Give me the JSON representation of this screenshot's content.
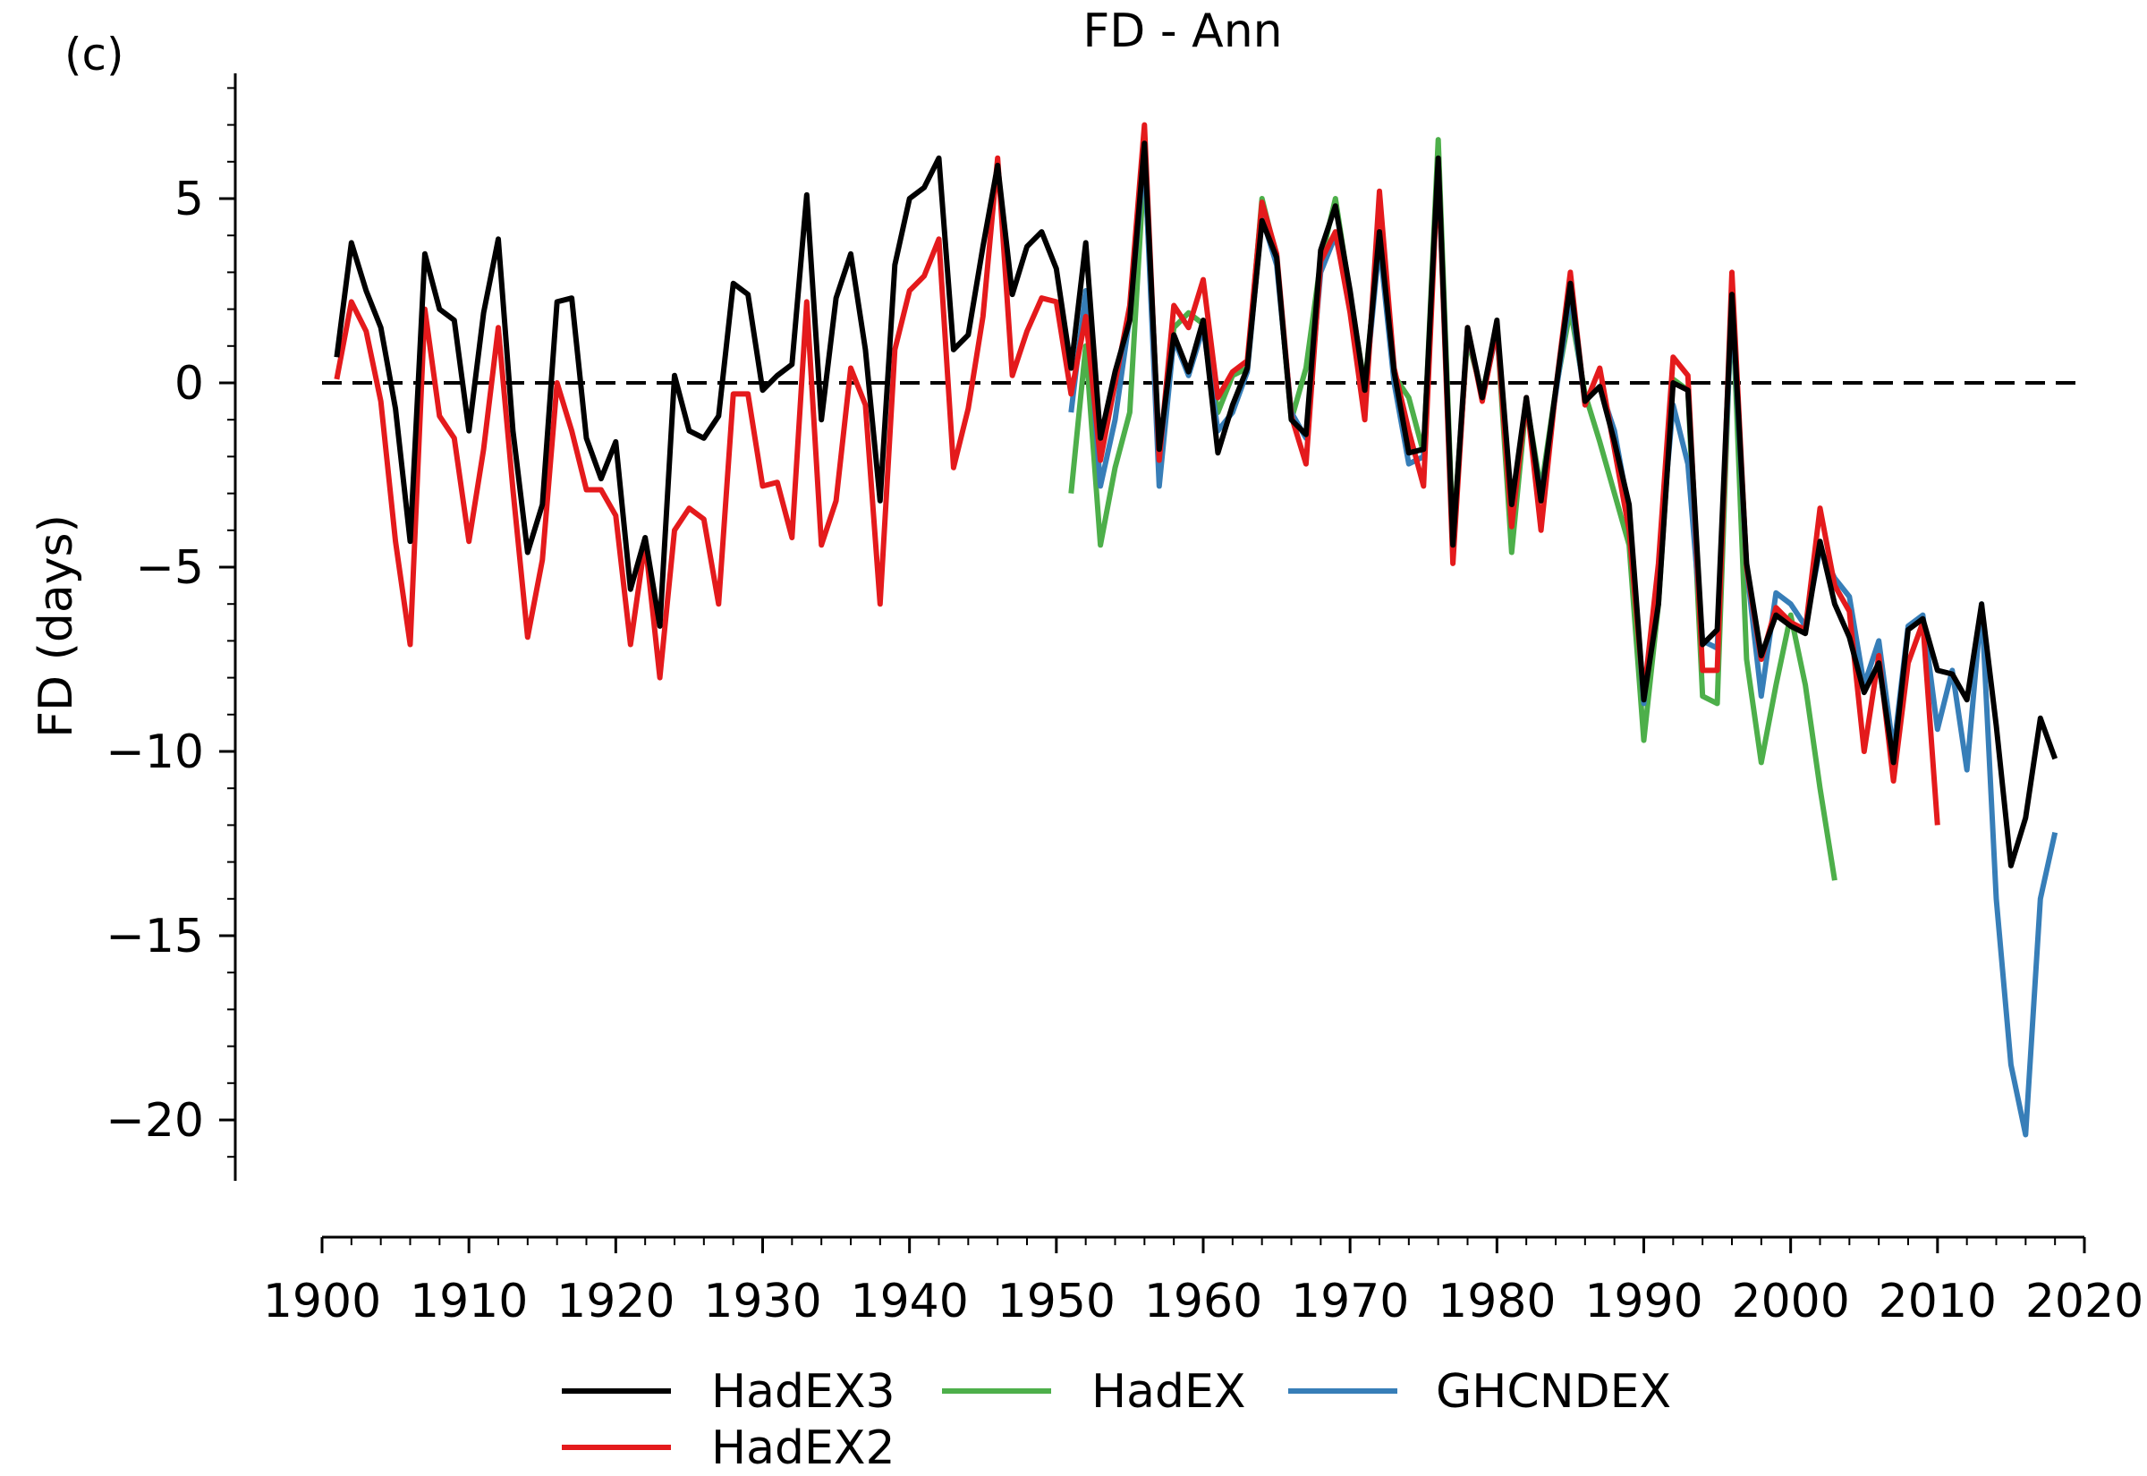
{
  "panel_label": "(c)",
  "chart_data": {
    "type": "line",
    "title": "FD - Ann",
    "xlabel": "",
    "ylabel": "FD (days)",
    "xlim": [
      1900,
      2020
    ],
    "ylim": [
      -22,
      8.5
    ],
    "x_ticks": [
      1900,
      1910,
      1920,
      1930,
      1940,
      1950,
      1960,
      1970,
      1980,
      1990,
      2000,
      2010,
      2020
    ],
    "y_ticks": [
      5,
      0,
      -5,
      -10,
      -15,
      -20
    ],
    "y_tick_labels": [
      "5",
      "0",
      "−5",
      "−10",
      "−15",
      "−20"
    ],
    "reference_line": 0,
    "legend": {
      "placement": "bottom-center",
      "entries": [
        "HadEX3",
        "HadEX2",
        "HadEX",
        "GHCNDEX"
      ]
    },
    "series": [
      {
        "name": "HadEX",
        "color": "#4daf4a",
        "x": [
          1951,
          1952,
          1953,
          1954,
          1955,
          1956,
          1957,
          1958,
          1959,
          1960,
          1961,
          1962,
          1963,
          1964,
          1965,
          1966,
          1967,
          1968,
          1969,
          1970,
          1971,
          1972,
          1973,
          1974,
          1975,
          1976,
          1977,
          1978,
          1979,
          1980,
          1981,
          1982,
          1983,
          1984,
          1985,
          1986,
          1987,
          1988,
          1989,
          1990,
          1991,
          1992,
          1993,
          1994,
          1995,
          1996,
          1997,
          1998,
          1999,
          2000,
          2001,
          2002,
          2003
        ],
        "y": [
          -3.0,
          1.0,
          -4.4,
          -2.3,
          -0.8,
          6.0,
          -1.9,
          1.5,
          1.9,
          1.6,
          -0.8,
          0.2,
          0.4,
          5.0,
          3.4,
          -1.0,
          0.4,
          3.3,
          5.0,
          2.4,
          -0.1,
          4.0,
          0.2,
          -0.4,
          -1.9,
          6.6,
          -4.2,
          1.2,
          -0.3,
          1.5,
          -4.6,
          -0.5,
          -2.9,
          -0.2,
          2.0,
          -0.3,
          -1.6,
          -3.0,
          -4.4,
          -9.7,
          -6.0,
          0.1,
          -0.2,
          -8.5,
          -8.7,
          2.5,
          -7.5,
          -10.3,
          -8.2,
          -6.3,
          -8.2,
          -11.0,
          -13.5
        ]
      },
      {
        "name": "GHCNDEX",
        "color": "#377eb8",
        "x": [
          1951,
          1952,
          1953,
          1954,
          1955,
          1956,
          1957,
          1958,
          1959,
          1960,
          1961,
          1962,
          1963,
          1964,
          1965,
          1966,
          1967,
          1968,
          1969,
          1970,
          1971,
          1972,
          1973,
          1974,
          1975,
          1976,
          1977,
          1978,
          1979,
          1980,
          1981,
          1982,
          1983,
          1984,
          1985,
          1986,
          1987,
          1988,
          1989,
          1990,
          1991,
          1992,
          1993,
          1994,
          1995,
          1996,
          1997,
          1998,
          1999,
          2000,
          2001,
          2002,
          2003,
          2004,
          2005,
          2006,
          2007,
          2008,
          2009,
          2010,
          2011,
          2012,
          2013,
          2014,
          2015,
          2016,
          2017,
          2018
        ],
        "y": [
          -0.8,
          2.5,
          -2.8,
          -1.0,
          1.8,
          6.2,
          -2.8,
          1.2,
          0.2,
          1.5,
          -1.3,
          -0.8,
          0.3,
          4.5,
          3.2,
          -0.8,
          -1.5,
          3.0,
          4.0,
          2.2,
          -0.3,
          3.8,
          0.0,
          -2.2,
          -2.0,
          6.0,
          -4.6,
          1.4,
          -0.4,
          1.4,
          -3.6,
          -0.5,
          -3.1,
          -0.3,
          2.4,
          -0.5,
          -0.1,
          -1.3,
          -3.5,
          -8.7,
          -5.0,
          -0.6,
          -2.2,
          -7.0,
          -7.2,
          2.2,
          -5.0,
          -8.5,
          -5.7,
          -6.0,
          -6.6,
          -4.5,
          -5.3,
          -5.8,
          -8.2,
          -7.0,
          -10.0,
          -6.6,
          -6.3,
          -9.4,
          -7.8,
          -10.5,
          -6.0,
          -14.0,
          -18.5,
          -20.4,
          -14.0,
          -12.2
        ]
      },
      {
        "name": "HadEX2",
        "color": "#e41a1c",
        "x": [
          1901,
          1902,
          1903,
          1904,
          1905,
          1906,
          1907,
          1908,
          1909,
          1910,
          1911,
          1912,
          1913,
          1914,
          1915,
          1916,
          1917,
          1918,
          1919,
          1920,
          1921,
          1922,
          1923,
          1924,
          1925,
          1926,
          1927,
          1928,
          1929,
          1930,
          1931,
          1932,
          1933,
          1934,
          1935,
          1936,
          1937,
          1938,
          1939,
          1940,
          1941,
          1942,
          1943,
          1944,
          1945,
          1946,
          1947,
          1948,
          1949,
          1950,
          1951,
          1952,
          1953,
          1954,
          1955,
          1956,
          1957,
          1958,
          1959,
          1960,
          1961,
          1962,
          1963,
          1964,
          1965,
          1966,
          1967,
          1968,
          1969,
          1970,
          1971,
          1972,
          1973,
          1974,
          1975,
          1976,
          1977,
          1978,
          1979,
          1980,
          1981,
          1982,
          1983,
          1984,
          1985,
          1986,
          1987,
          1988,
          1989,
          1990,
          1991,
          1992,
          1993,
          1994,
          1995,
          1996,
          1997,
          1998,
          1999,
          2000,
          2001,
          2002,
          2003,
          2004,
          2005,
          2006,
          2007,
          2008,
          2009,
          2010
        ],
        "y": [
          0.1,
          2.2,
          1.4,
          -0.5,
          -4.3,
          -7.1,
          2.0,
          -0.9,
          -1.5,
          -4.3,
          -1.8,
          1.5,
          -2.9,
          -6.9,
          -4.8,
          0.0,
          -1.3,
          -2.9,
          -2.9,
          -3.6,
          -7.1,
          -4.3,
          -8.0,
          -4.0,
          -3.4,
          -3.7,
          -6.0,
          -0.3,
          -0.3,
          -2.8,
          -2.7,
          -4.2,
          2.2,
          -4.4,
          -3.2,
          0.4,
          -0.6,
          -6.0,
          0.9,
          2.5,
          2.9,
          3.9,
          -2.3,
          -0.7,
          1.8,
          6.1,
          0.2,
          1.4,
          2.3,
          2.2,
          -0.3,
          1.8,
          -2.1,
          0.0,
          2.1,
          7.0,
          -2.1,
          2.1,
          1.5,
          2.8,
          -0.4,
          0.3,
          0.6,
          4.9,
          3.5,
          -0.9,
          -2.2,
          3.3,
          4.1,
          1.9,
          -1.0,
          5.2,
          0.4,
          -1.3,
          -2.8,
          6.0,
          -4.9,
          1.5,
          -0.5,
          1.5,
          -3.9,
          -0.4,
          -4.0,
          -0.2,
          3.0,
          -0.6,
          0.4,
          -1.8,
          -4.0,
          -8.5,
          -4.9,
          0.7,
          0.2,
          -7.8,
          -7.8,
          3.0,
          -5.0,
          -7.5,
          -6.1,
          -6.5,
          -6.7,
          -3.4,
          -5.5,
          -6.2,
          -10.0,
          -7.4,
          -10.8,
          -7.6,
          -6.5,
          -12.0
        ]
      },
      {
        "name": "HadEX3",
        "color": "#000000",
        "x": [
          1901,
          1902,
          1903,
          1904,
          1905,
          1906,
          1907,
          1908,
          1909,
          1910,
          1911,
          1912,
          1913,
          1914,
          1915,
          1916,
          1917,
          1918,
          1919,
          1920,
          1921,
          1922,
          1923,
          1924,
          1925,
          1926,
          1927,
          1928,
          1929,
          1930,
          1931,
          1932,
          1933,
          1934,
          1935,
          1936,
          1937,
          1938,
          1939,
          1940,
          1941,
          1942,
          1943,
          1944,
          1945,
          1946,
          1947,
          1948,
          1949,
          1950,
          1951,
          1952,
          1953,
          1954,
          1955,
          1956,
          1957,
          1958,
          1959,
          1960,
          1961,
          1962,
          1963,
          1964,
          1965,
          1966,
          1967,
          1968,
          1969,
          1970,
          1971,
          1972,
          1973,
          1974,
          1975,
          1976,
          1977,
          1978,
          1979,
          1980,
          1981,
          1982,
          1983,
          1984,
          1985,
          1986,
          1987,
          1988,
          1989,
          1990,
          1991,
          1992,
          1993,
          1994,
          1995,
          1996,
          1997,
          1998,
          1999,
          2000,
          2001,
          2002,
          2003,
          2004,
          2005,
          2006,
          2007,
          2008,
          2009,
          2010,
          2011,
          2012,
          2013,
          2014,
          2015,
          2016,
          2017,
          2018
        ],
        "y": [
          0.7,
          3.8,
          2.5,
          1.5,
          -0.7,
          -4.3,
          3.5,
          2.0,
          1.7,
          -1.3,
          1.9,
          3.9,
          -1.3,
          -4.6,
          -3.3,
          2.2,
          2.3,
          -1.5,
          -2.6,
          -1.6,
          -5.6,
          -4.2,
          -6.6,
          0.2,
          -1.3,
          -1.5,
          -0.9,
          2.7,
          2.4,
          -0.2,
          0.2,
          0.5,
          5.1,
          -1.0,
          2.3,
          3.5,
          0.9,
          -3.2,
          3.2,
          5.0,
          5.3,
          6.1,
          0.9,
          1.3,
          3.7,
          5.9,
          2.4,
          3.7,
          4.1,
          3.1,
          0.4,
          3.8,
          -1.5,
          0.3,
          1.7,
          6.5,
          -1.8,
          1.3,
          0.3,
          1.7,
          -1.9,
          -0.6,
          0.4,
          4.4,
          3.4,
          -1.0,
          -1.4,
          3.6,
          4.8,
          2.5,
          -0.2,
          4.1,
          0.3,
          -1.9,
          -1.8,
          6.1,
          -4.4,
          1.5,
          -0.4,
          1.7,
          -3.3,
          -0.4,
          -3.2,
          -0.2,
          2.7,
          -0.5,
          -0.1,
          -1.6,
          -3.3,
          -8.6,
          -6.0,
          0.0,
          -0.2,
          -7.1,
          -6.7,
          2.4,
          -4.9,
          -7.4,
          -6.3,
          -6.6,
          -6.8,
          -4.3,
          -6.0,
          -6.9,
          -8.4,
          -7.6,
          -10.3,
          -6.7,
          -6.4,
          -7.8,
          -7.9,
          -8.6,
          -6.0,
          -9.3,
          -13.1,
          -11.8,
          -9.1,
          -10.2
        ]
      }
    ]
  }
}
